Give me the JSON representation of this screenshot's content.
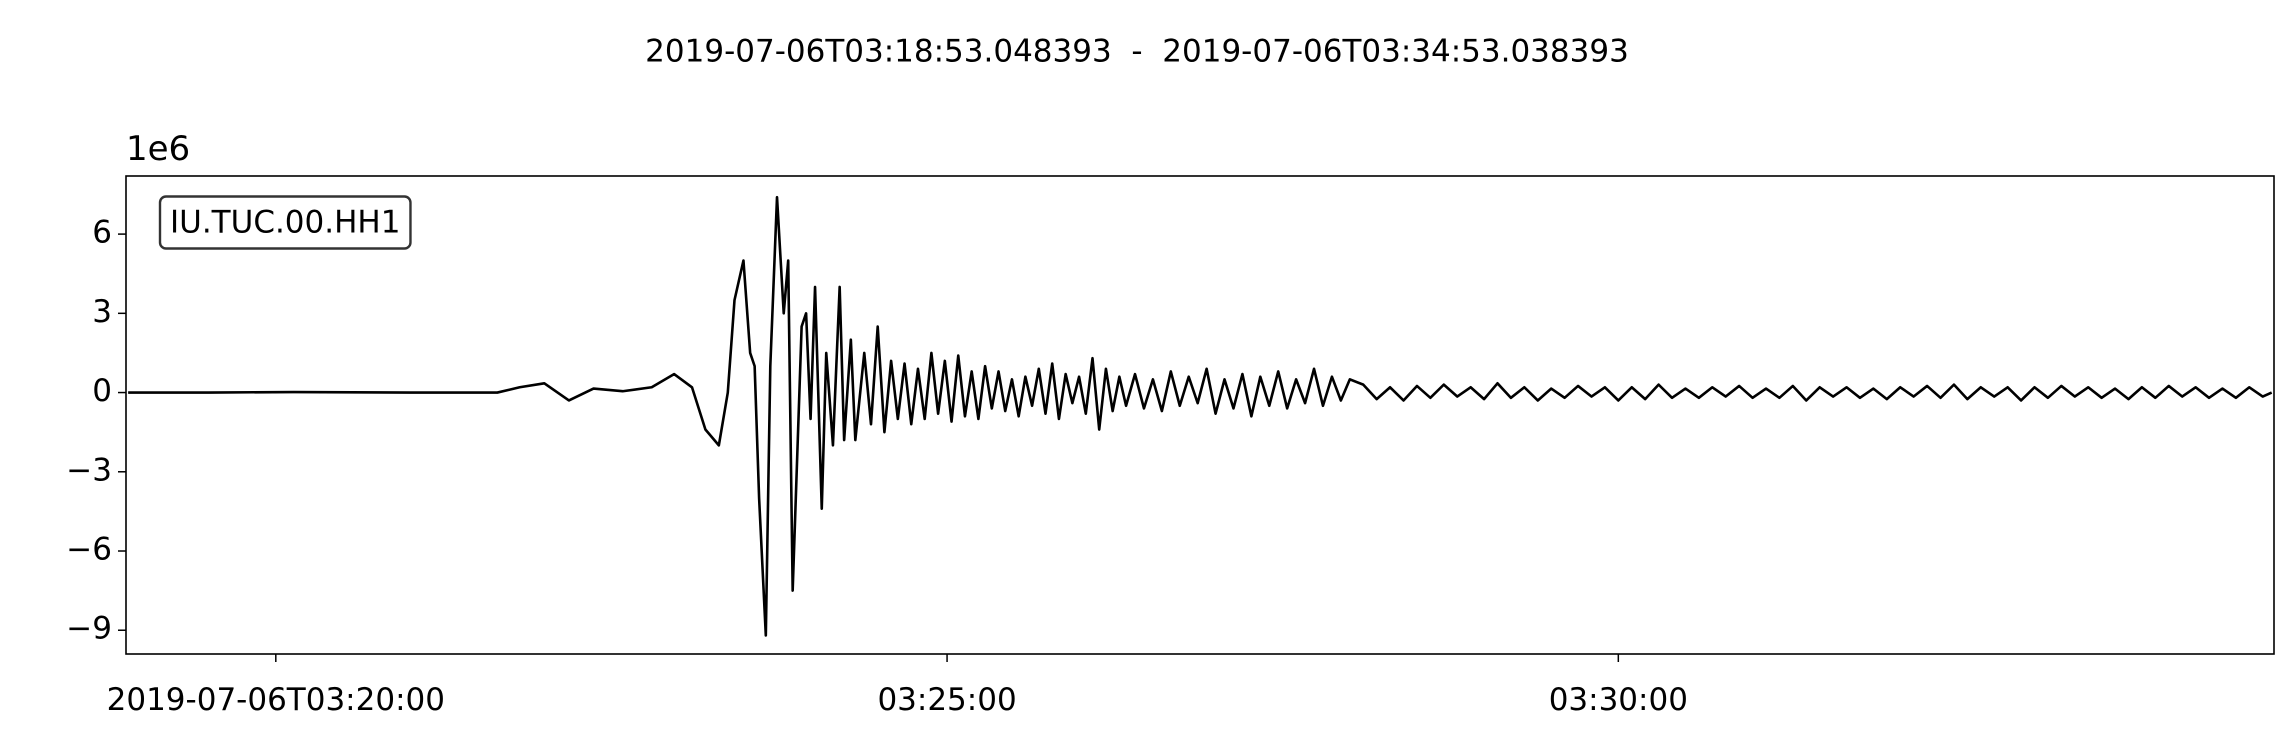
{
  "chart_data": {
    "type": "line",
    "title": "2019-07-06T03:18:53.048393  -  2019-07-06T03:34:53.038393",
    "y_offset": "1e6",
    "legend": "upper left",
    "xlim": [
      "2019-07-06T03:18:53.048393",
      "2019-07-06T03:34:53.038393"
    ],
    "xticks": [
      "2019-07-06T03:20:00",
      {
        "value": "2019-07-06T03:25:00",
        "label": "03:25:00"
      },
      {
        "value": "2019-07-06T03:30:00",
        "label": "03:30:00"
      }
    ],
    "ylim": [
      -9.9,
      8.2
    ],
    "yticks": [
      {
        "value": -9,
        "label": "−9"
      },
      {
        "value": -6,
        "label": "−6"
      },
      {
        "value": -3,
        "label": "−3"
      },
      0,
      3,
      6
    ],
    "x": [
      "2019-07-06T03:18:54",
      "2019-07-06T03:19:30",
      "2019-07-06T03:20:08",
      "2019-07-06T03:21:00",
      "2019-07-06T03:21:39",
      "2019-07-06T03:21:49",
      "2019-07-06T03:22:00",
      "2019-07-06T03:22:11",
      "2019-07-06T03:22:22",
      "2019-07-06T03:22:35",
      "2019-07-06T03:22:48",
      "2019-07-06T03:22:58",
      "2019-07-06T03:23:06",
      "2019-07-06T03:23:12",
      "2019-07-06T03:23:18",
      "2019-07-06T03:23:22",
      "2019-07-06T03:23:25",
      "2019-07-06T03:23:29",
      "2019-07-06T03:23:32",
      "2019-07-06T03:23:34",
      "2019-07-06T03:23:36",
      "2019-07-06T03:23:39",
      "2019-07-06T03:23:41",
      "2019-07-06T03:23:44",
      "2019-07-06T03:23:47",
      "2019-07-06T03:23:49",
      "2019-07-06T03:23:51",
      "2019-07-06T03:23:55",
      "2019-07-06T03:23:57",
      "2019-07-06T03:23:59",
      "2019-07-06T03:24:01",
      "2019-07-06T03:24:04",
      "2019-07-06T03:24:06",
      "2019-07-06T03:24:09",
      "2019-07-06T03:24:12",
      "2019-07-06T03:24:14",
      "2019-07-06T03:24:17",
      "2019-07-06T03:24:19",
      "2019-07-06T03:24:23",
      "2019-07-06T03:24:26",
      "2019-07-06T03:24:29",
      "2019-07-06T03:24:32",
      "2019-07-06T03:24:35",
      "2019-07-06T03:24:38",
      "2019-07-06T03:24:41",
      "2019-07-06T03:24:44",
      "2019-07-06T03:24:47",
      "2019-07-06T03:24:50",
      "2019-07-06T03:24:53",
      "2019-07-06T03:24:56",
      "2019-07-06T03:24:59",
      "2019-07-06T03:25:02",
      "2019-07-06T03:25:05",
      "2019-07-06T03:25:08",
      "2019-07-06T03:25:11",
      "2019-07-06T03:25:14",
      "2019-07-06T03:25:17",
      "2019-07-06T03:25:20",
      "2019-07-06T03:25:23",
      "2019-07-06T03:25:26",
      "2019-07-06T03:25:29",
      "2019-07-06T03:25:32",
      "2019-07-06T03:25:35",
      "2019-07-06T03:25:38",
      "2019-07-06T03:25:41",
      "2019-07-06T03:25:44",
      "2019-07-06T03:25:47",
      "2019-07-06T03:25:50",
      "2019-07-06T03:25:53",
      "2019-07-06T03:25:56",
      "2019-07-06T03:25:59",
      "2019-07-06T03:26:02",
      "2019-07-06T03:26:05",
      "2019-07-06T03:26:08",
      "2019-07-06T03:26:11",
      "2019-07-06T03:26:14",
      "2019-07-06T03:26:17",
      "2019-07-06T03:26:20",
      "2019-07-06T03:26:24",
      "2019-07-06T03:26:28",
      "2019-07-06T03:26:32",
      "2019-07-06T03:26:36",
      "2019-07-06T03:26:40",
      "2019-07-06T03:26:44",
      "2019-07-06T03:26:48",
      "2019-07-06T03:26:52",
      "2019-07-06T03:26:56",
      "2019-07-06T03:27:00",
      "2019-07-06T03:27:04",
      "2019-07-06T03:27:08",
      "2019-07-06T03:27:12",
      "2019-07-06T03:27:16",
      "2019-07-06T03:27:20",
      "2019-07-06T03:27:24",
      "2019-07-06T03:27:28",
      "2019-07-06T03:27:32",
      "2019-07-06T03:27:36",
      "2019-07-06T03:27:40",
      "2019-07-06T03:27:44",
      "2019-07-06T03:27:48",
      "2019-07-06T03:27:52",
      "2019-07-06T03:27:56",
      "2019-07-06T03:28:00",
      "2019-07-06T03:28:06",
      "2019-07-06T03:28:12",
      "2019-07-06T03:28:18",
      "2019-07-06T03:28:24",
      "2019-07-06T03:28:30",
      "2019-07-06T03:28:36",
      "2019-07-06T03:28:42",
      "2019-07-06T03:28:48",
      "2019-07-06T03:28:54",
      "2019-07-06T03:29:00",
      "2019-07-06T03:29:06",
      "2019-07-06T03:29:12",
      "2019-07-06T03:29:18",
      "2019-07-06T03:29:24",
      "2019-07-06T03:29:30",
      "2019-07-06T03:29:36",
      "2019-07-06T03:29:42",
      "2019-07-06T03:29:48",
      "2019-07-06T03:29:54",
      "2019-07-06T03:30:00",
      "2019-07-06T03:30:06",
      "2019-07-06T03:30:12",
      "2019-07-06T03:30:18",
      "2019-07-06T03:30:24",
      "2019-07-06T03:30:30",
      "2019-07-06T03:30:36",
      "2019-07-06T03:30:42",
      "2019-07-06T03:30:48",
      "2019-07-06T03:30:54",
      "2019-07-06T03:31:00",
      "2019-07-06T03:31:06",
      "2019-07-06T03:31:12",
      "2019-07-06T03:31:18",
      "2019-07-06T03:31:24",
      "2019-07-06T03:31:30",
      "2019-07-06T03:31:36",
      "2019-07-06T03:31:42",
      "2019-07-06T03:31:48",
      "2019-07-06T03:31:54",
      "2019-07-06T03:32:00",
      "2019-07-06T03:32:06",
      "2019-07-06T03:32:12",
      "2019-07-06T03:32:18",
      "2019-07-06T03:32:24",
      "2019-07-06T03:32:30",
      "2019-07-06T03:32:36",
      "2019-07-06T03:32:42",
      "2019-07-06T03:32:48",
      "2019-07-06T03:32:54",
      "2019-07-06T03:33:00",
      "2019-07-06T03:33:06",
      "2019-07-06T03:33:12",
      "2019-07-06T03:33:18",
      "2019-07-06T03:33:24",
      "2019-07-06T03:33:30",
      "2019-07-06T03:33:36",
      "2019-07-06T03:33:42",
      "2019-07-06T03:33:48",
      "2019-07-06T03:33:54",
      "2019-07-06T03:34:00",
      "2019-07-06T03:34:06",
      "2019-07-06T03:34:12",
      "2019-07-06T03:34:18",
      "2019-07-06T03:34:24",
      "2019-07-06T03:34:30",
      "2019-07-06T03:34:36",
      "2019-07-06T03:34:42",
      "2019-07-06T03:34:48",
      "2019-07-06T03:34:52"
    ],
    "series": [
      {
        "name": "IU.TUC.00.HH1",
        "color": "#000000",
        "values": [
          0,
          0,
          0.02,
          0,
          0,
          0.2,
          0.35,
          -0.3,
          0.15,
          0.05,
          0.2,
          0.7,
          0.2,
          -1.4,
          -2.0,
          0,
          3.5,
          5.0,
          1.5,
          1.0,
          -4,
          -9.2,
          1,
          7.4,
          3,
          5,
          -7.5,
          2.5,
          3,
          -1,
          4,
          -4.4,
          1.5,
          -2,
          4,
          -1.8,
          2,
          -1.8,
          1.5,
          -1.2,
          2.5,
          -1.5,
          1.2,
          -1.0,
          1.1,
          -1.2,
          0.9,
          -1.0,
          1.5,
          -0.8,
          1.2,
          -1.1,
          1.4,
          -0.9,
          0.8,
          -1.0,
          1.0,
          -0.6,
          0.8,
          -0.7,
          0.5,
          -0.9,
          0.6,
          -0.5,
          0.9,
          -0.8,
          1.1,
          -1.0,
          0.7,
          -0.4,
          0.6,
          -0.8,
          1.3,
          -1.4,
          0.9,
          -0.7,
          0.6,
          -0.5,
          0.7,
          -0.6,
          0.5,
          -0.7,
          0.8,
          -0.5,
          0.6,
          -0.4,
          0.9,
          -0.8,
          0.5,
          -0.6,
          0.7,
          -0.9,
          0.6,
          -0.5,
          0.8,
          -0.6,
          0.5,
          -0.4,
          0.9,
          -0.5,
          0.6,
          -0.3,
          0.5,
          0.3,
          -0.25,
          0.2,
          -0.3,
          0.25,
          -0.2,
          0.3,
          -0.15,
          0.2,
          -0.25,
          0.35,
          -0.2,
          0.2,
          -0.3,
          0.15,
          -0.2,
          0.25,
          -0.15,
          0.2,
          -0.3,
          0.2,
          -0.25,
          0.3,
          -0.2,
          0.15,
          -0.2,
          0.2,
          -0.15,
          0.25,
          -0.2,
          0.15,
          -0.2,
          0.25,
          -0.3,
          0.2,
          -0.15,
          0.2,
          -0.2,
          0.15,
          -0.25,
          0.2,
          -0.15,
          0.25,
          -0.2,
          0.3,
          -0.25,
          0.2,
          -0.15,
          0.2,
          -0.3,
          0.2,
          -0.2,
          0.25,
          -0.15,
          0.2,
          -0.2,
          0.15,
          -0.25,
          0.2,
          -0.2,
          0.25,
          -0.15,
          0.2,
          -0.2,
          0.15,
          -0.2,
          0.2,
          -0.15,
          0
        ]
      }
    ]
  }
}
